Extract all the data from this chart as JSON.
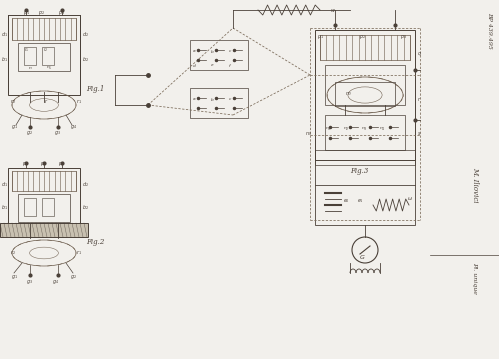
{
  "bg_color": "#f2f0ec",
  "line_color": "#4a4038",
  "coil_color": "#6a5a4a",
  "dashed_color": "#7a6a58",
  "title_top_right": "BP 439.495",
  "author": "M. Iliovici",
  "printer": "Pl. unique",
  "fig1_label": "Fig.1",
  "fig2_label": "Fig.2",
  "fig3_label": "Fig.3"
}
